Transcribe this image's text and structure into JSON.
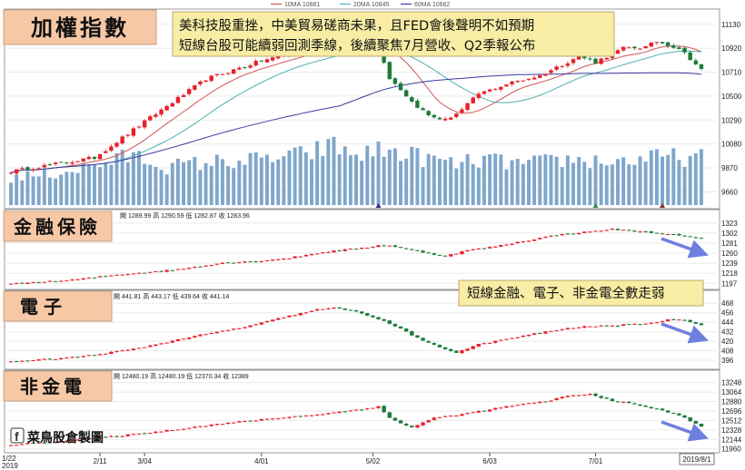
{
  "header": {
    "legend": [
      {
        "label": "10MA 10881",
        "color": "#d45555"
      },
      {
        "label": "20MA 10845",
        "color": "#4cb0b0"
      },
      {
        "label": "60MA 10662",
        "color": "#3a3aa0"
      }
    ]
  },
  "annotations": {
    "main_title": "加權指數",
    "headline_1": "美科技股重挫，中美貿易磋商未果，且FED會後聲明不如預期",
    "headline_2": "短線台股可能續弱回測季線，後續聚焦7月營收、Q2季報公布",
    "sector_note": "短線金融、電子、非金電全數走弱",
    "watermark": "菜鳥股倉製圖"
  },
  "colors": {
    "up": "#e8202a",
    "down": "#1c7a3a",
    "volume": "#7fa6cb",
    "arrow": "#6f7fe0",
    "title_box": "#f6c8a6",
    "note_box": "#f7eda4"
  },
  "chart_data": [
    {
      "type": "candlestick",
      "name": "加權指數",
      "title": "加權指數",
      "n": 125,
      "ylim": [
        9560,
        11200
      ],
      "yticks": [
        "11130",
        "10920",
        "10710",
        "10500",
        "10290",
        "10080",
        "9870",
        "9660"
      ],
      "xticks": [
        {
          "i": 16,
          "label": "2/11"
        },
        {
          "i": 24,
          "label": "3/04"
        },
        {
          "i": 45,
          "label": "4/01"
        },
        {
          "i": 65,
          "label": "5/02"
        },
        {
          "i": 86,
          "label": "6/03"
        },
        {
          "i": 105,
          "label": "7/01"
        }
      ],
      "x_start": "1/22",
      "x_start_year": "2019",
      "x_end": "2019/8/1",
      "keypoints": [
        [
          0,
          9840
        ],
        [
          15,
          9960
        ],
        [
          25,
          10310
        ],
        [
          35,
          10650
        ],
        [
          45,
          10810
        ],
        [
          55,
          10930
        ],
        [
          62,
          10970
        ],
        [
          64,
          10990
        ],
        [
          66,
          10950
        ],
        [
          68,
          10660
        ],
        [
          70,
          10560
        ],
        [
          72,
          10450
        ],
        [
          75,
          10330
        ],
        [
          78,
          10290
        ],
        [
          81,
          10380
        ],
        [
          84,
          10520
        ],
        [
          90,
          10620
        ],
        [
          95,
          10680
        ],
        [
          102,
          10850
        ],
        [
          105,
          10800
        ],
        [
          110,
          10920
        ],
        [
          114,
          10930
        ],
        [
          116,
          10980
        ],
        [
          120,
          10920
        ],
        [
          122,
          10830
        ],
        [
          124,
          10730
        ]
      ],
      "ma": [
        {
          "name": "10MA 10881",
          "period": 10,
          "color": "#d45555"
        },
        {
          "name": "20MA 10845",
          "period": 20,
          "color": "#4cb0b0"
        },
        {
          "name": "60MA 10662",
          "period": 60,
          "color": "#3a3aa0"
        }
      ],
      "volume_keypoints": [
        [
          0,
          0.3
        ],
        [
          8,
          0.35
        ],
        [
          16,
          0.45
        ],
        [
          22,
          0.55
        ],
        [
          28,
          0.42
        ],
        [
          35,
          0.47
        ],
        [
          45,
          0.5
        ],
        [
          52,
          0.55
        ],
        [
          56,
          0.62
        ],
        [
          58,
          0.65
        ],
        [
          62,
          0.55
        ],
        [
          66,
          0.6
        ],
        [
          70,
          0.58
        ],
        [
          74,
          0.52
        ],
        [
          80,
          0.45
        ],
        [
          85,
          0.5
        ],
        [
          92,
          0.45
        ],
        [
          100,
          0.5
        ],
        [
          108,
          0.48
        ],
        [
          112,
          0.5
        ],
        [
          118,
          0.53
        ],
        [
          124,
          0.52
        ]
      ]
    },
    {
      "type": "candlestick",
      "name": "金融保險",
      "title": "金融保險",
      "ohlc_text": "開 1289.99 高 1290.59 低 1282.87 收 1283.96",
      "ylim": [
        1190,
        1332
      ],
      "yticks": [
        "1323",
        "1302",
        "1281",
        "1260",
        "1239",
        "1218",
        "1197"
      ],
      "keypoints": [
        [
          0,
          1196
        ],
        [
          10,
          1203
        ],
        [
          20,
          1216
        ],
        [
          30,
          1226
        ],
        [
          38,
          1240
        ],
        [
          44,
          1243
        ],
        [
          50,
          1250
        ],
        [
          56,
          1262
        ],
        [
          64,
          1272
        ],
        [
          66,
          1276
        ],
        [
          68,
          1276
        ],
        [
          72,
          1266
        ],
        [
          78,
          1254
        ],
        [
          82,
          1266
        ],
        [
          86,
          1272
        ],
        [
          92,
          1285
        ],
        [
          98,
          1298
        ],
        [
          104,
          1305
        ],
        [
          108,
          1310
        ],
        [
          112,
          1306
        ],
        [
          118,
          1300
        ],
        [
          124,
          1290
        ]
      ]
    },
    {
      "type": "candlestick",
      "name": "電子",
      "title": "電子",
      "ohlc_text": "開 441.81 高 443.17 低 439.64 收 441.14",
      "ylim": [
        388,
        474
      ],
      "yticks": [
        "468",
        "456",
        "444",
        "432",
        "420",
        "408",
        "396"
      ],
      "keypoints": [
        [
          0,
          394
        ],
        [
          12,
          400
        ],
        [
          22,
          410
        ],
        [
          32,
          425
        ],
        [
          42,
          438
        ],
        [
          50,
          452
        ],
        [
          55,
          460
        ],
        [
          58,
          462
        ],
        [
          62,
          458
        ],
        [
          66,
          448
        ],
        [
          70,
          436
        ],
        [
          74,
          420
        ],
        [
          78,
          410
        ],
        [
          80,
          406
        ],
        [
          84,
          416
        ],
        [
          90,
          424
        ],
        [
          96,
          432
        ],
        [
          102,
          438
        ],
        [
          108,
          440
        ],
        [
          114,
          442
        ],
        [
          118,
          447
        ],
        [
          120,
          448
        ],
        [
          124,
          441
        ]
      ]
    },
    {
      "type": "candlestick",
      "name": "非金電",
      "title": "非金電",
      "ohlc_text": "開 12480.19 高 12480.19 低 12370.34 收 12389",
      "ylim": [
        11920,
        13330
      ],
      "yticks": [
        "13248",
        "13064",
        "12880",
        "12696",
        "12512",
        "12328",
        "12144",
        "11960"
      ],
      "keypoints": [
        [
          0,
          12040
        ],
        [
          14,
          12150
        ],
        [
          26,
          12290
        ],
        [
          36,
          12430
        ],
        [
          46,
          12540
        ],
        [
          56,
          12640
        ],
        [
          62,
          12720
        ],
        [
          66,
          12780
        ],
        [
          68,
          12560
        ],
        [
          70,
          12460
        ],
        [
          72,
          12380
        ],
        [
          76,
          12560
        ],
        [
          82,
          12650
        ],
        [
          90,
          12800
        ],
        [
          96,
          12880
        ],
        [
          100,
          12990
        ],
        [
          104,
          13020
        ],
        [
          108,
          12900
        ],
        [
          114,
          12780
        ],
        [
          120,
          12620
        ],
        [
          124,
          12400
        ]
      ]
    }
  ]
}
